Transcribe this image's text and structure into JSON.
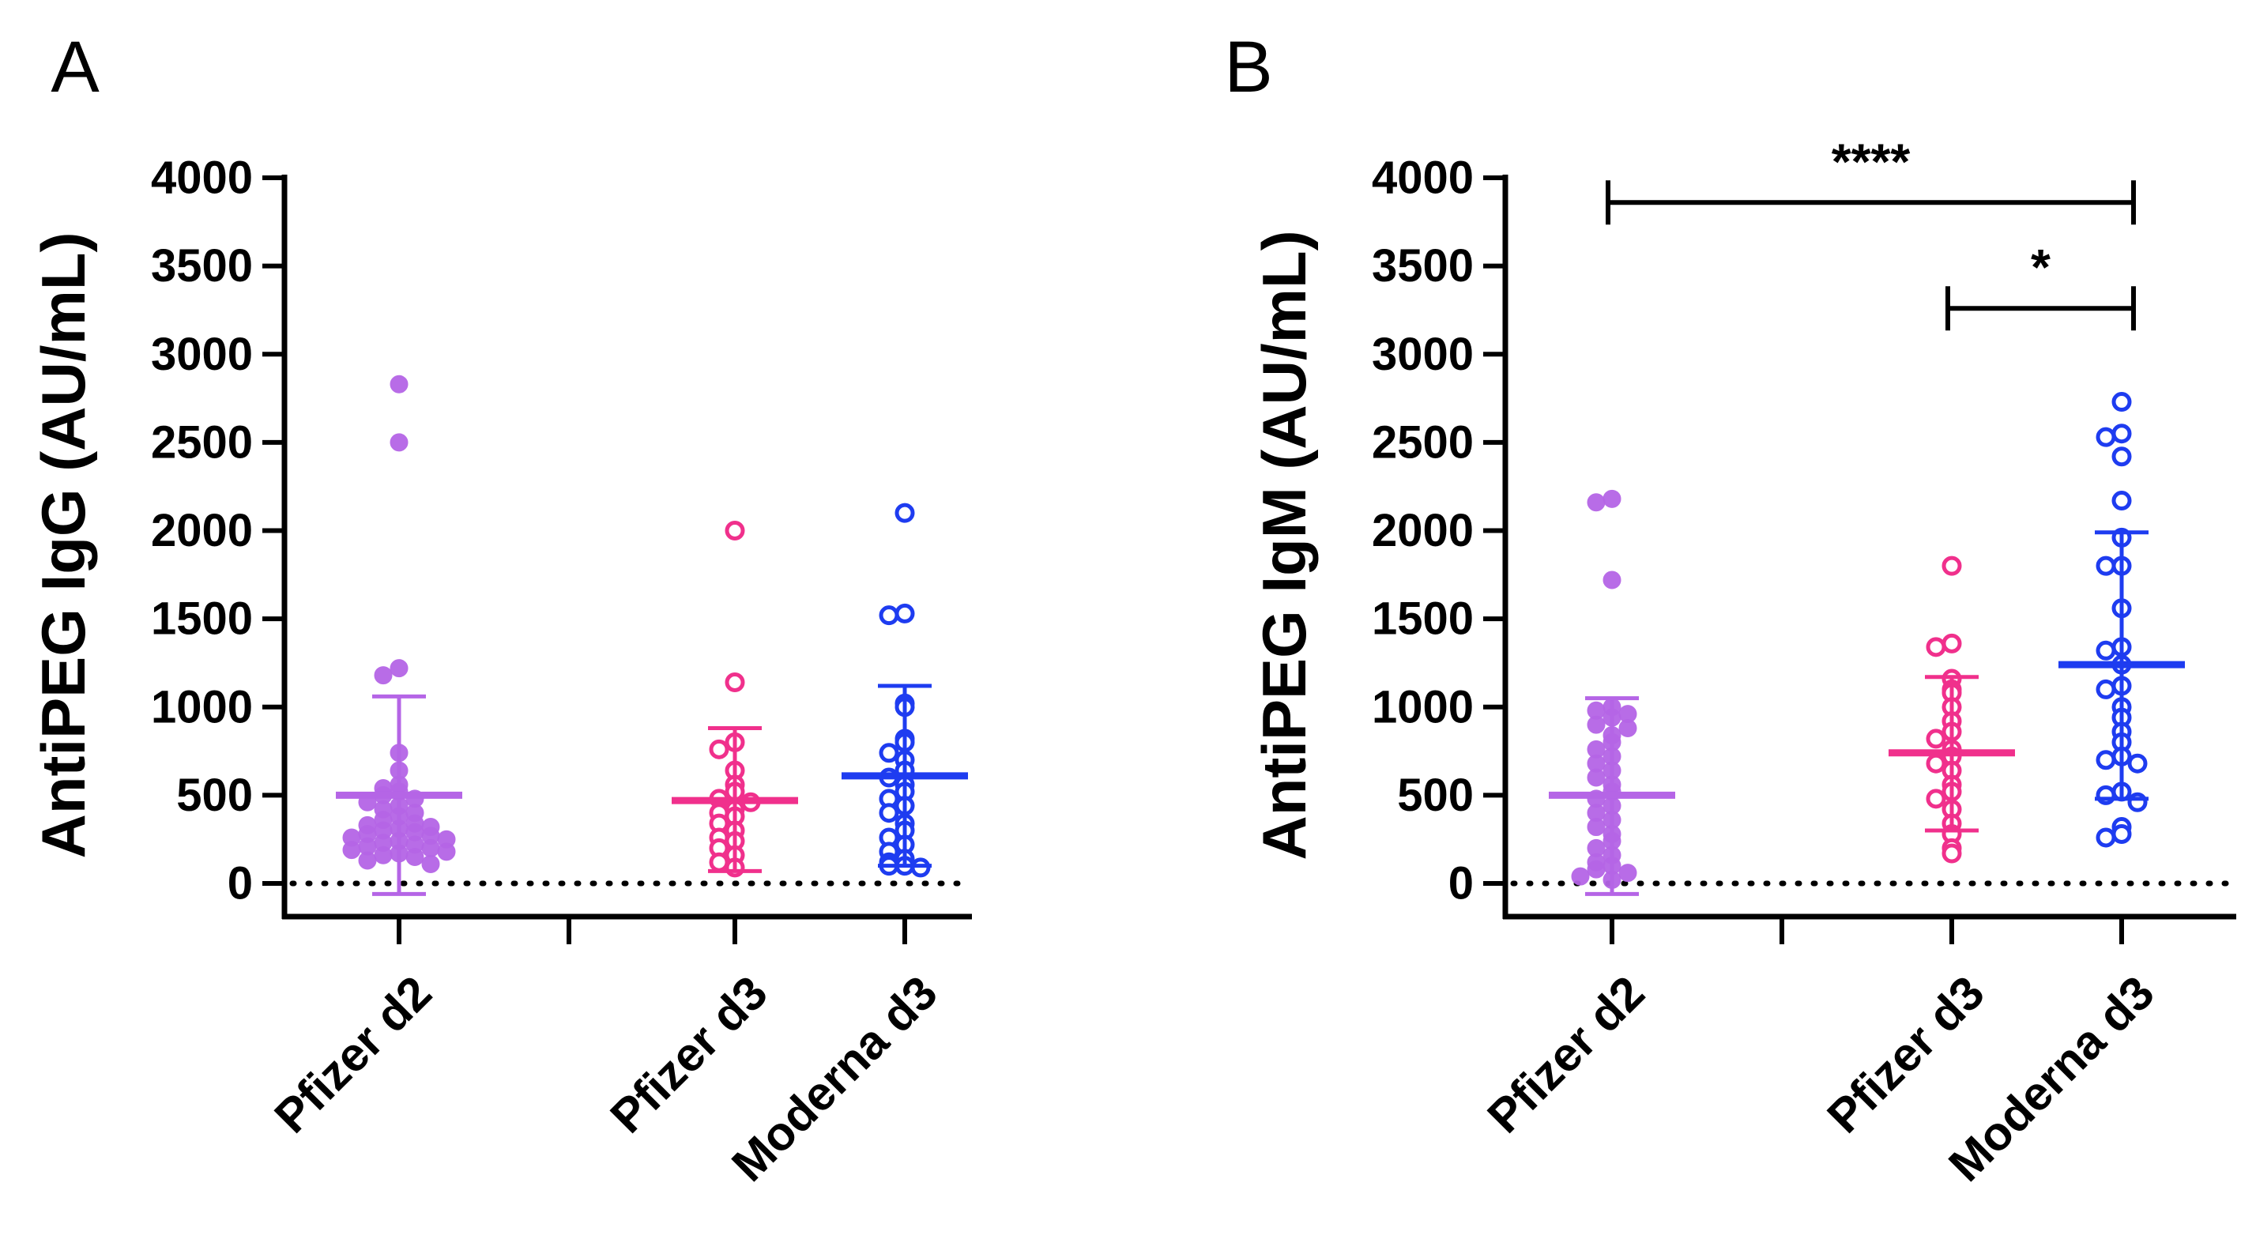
{
  "chart_data": [
    {
      "type": "scatter",
      "panel_label": "A",
      "title": "",
      "xlabel": "",
      "ylabel": "AntiPEG IgG (AU/mL)",
      "ylim": [
        0,
        4000
      ],
      "y_ticks": [
        "0",
        "500",
        "1000",
        "1500",
        "2000",
        "2500",
        "3000",
        "3500",
        "4000"
      ],
      "reference_line_y": 0,
      "categories": [
        "Pfizer d2",
        "",
        "Pfizer d3",
        "Moderna d3"
      ],
      "series": [
        {
          "name": "Pfizer d2",
          "color": "#b565e6",
          "filled": true,
          "mean": 500,
          "sd_low": -60,
          "sd_high": 1060,
          "values": [
            2830,
            2500,
            1220,
            1180,
            740,
            640,
            560,
            540,
            520,
            500,
            480,
            460,
            440,
            420,
            400,
            380,
            360,
            340,
            330,
            320,
            310,
            300,
            290,
            280,
            270,
            260,
            250,
            240,
            230,
            220,
            210,
            200,
            190,
            180,
            170,
            160,
            150,
            130,
            110
          ]
        },
        {
          "name": "Pfizer d3",
          "color": "#f0308c",
          "filled": false,
          "mean": 470,
          "sd_low": 70,
          "sd_high": 880,
          "values": [
            2000,
            1140,
            800,
            760,
            640,
            560,
            520,
            480,
            460,
            420,
            400,
            380,
            340,
            300,
            260,
            240,
            200,
            160,
            120,
            90
          ]
        },
        {
          "name": "Moderna d3",
          "color": "#1e3cf0",
          "filled": false,
          "mean": 610,
          "sd_low": 100,
          "sd_high": 1120,
          "values": [
            2100,
            1530,
            1520,
            1020,
            1000,
            820,
            800,
            740,
            700,
            640,
            600,
            560,
            520,
            480,
            440,
            400,
            340,
            300,
            260,
            220,
            180,
            140,
            120,
            100,
            100,
            90
          ]
        }
      ],
      "significance": []
    },
    {
      "type": "scatter",
      "panel_label": "B",
      "title": "",
      "xlabel": "",
      "ylabel": "AntiPEG IgM (AU/mL)",
      "ylim": [
        0,
        4000
      ],
      "y_ticks": [
        "0",
        "500",
        "1000",
        "1500",
        "2000",
        "2500",
        "3000",
        "3500",
        "4000"
      ],
      "reference_line_y": 0,
      "categories": [
        "Pfizer d2",
        "",
        "Pfizer d3",
        "Moderna d3"
      ],
      "series": [
        {
          "name": "Pfizer d2",
          "color": "#b565e6",
          "filled": true,
          "mean": 500,
          "sd_low": -60,
          "sd_high": 1050,
          "values": [
            2180,
            2160,
            1720,
            1000,
            980,
            960,
            940,
            900,
            880,
            840,
            800,
            760,
            720,
            680,
            640,
            600,
            560,
            520,
            480,
            440,
            400,
            360,
            320,
            280,
            240,
            200,
            160,
            120,
            100,
            80,
            60,
            40,
            20
          ]
        },
        {
          "name": "Pfizer d3",
          "color": "#f0308c",
          "filled": false,
          "mean": 740,
          "sd_low": 300,
          "sd_high": 1170,
          "values": [
            1800,
            1360,
            1340,
            1160,
            1100,
            1080,
            1000,
            920,
            860,
            820,
            760,
            720,
            680,
            640,
            560,
            520,
            480,
            420,
            340,
            280,
            200,
            170
          ]
        },
        {
          "name": "Moderna d3",
          "color": "#1e3cf0",
          "filled": false,
          "mean": 1240,
          "sd_low": 480,
          "sd_high": 1990,
          "values": [
            2730,
            2550,
            2530,
            2420,
            2170,
            1960,
            1800,
            1800,
            1560,
            1340,
            1320,
            1240,
            1120,
            1100,
            1000,
            940,
            860,
            800,
            720,
            700,
            680,
            520,
            500,
            460,
            320,
            280,
            260
          ]
        }
      ],
      "significance": [
        {
          "from": "Pfizer d2",
          "to": "Moderna d3",
          "y": 3860,
          "label": "****"
        },
        {
          "from": "Pfizer d3",
          "to": "Moderna d3",
          "y": 3260,
          "label": "*"
        }
      ]
    }
  ]
}
